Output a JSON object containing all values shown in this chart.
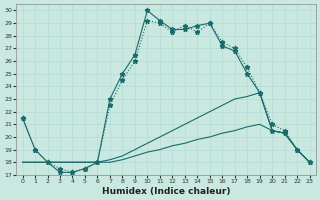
{
  "xlabel": "Humidex (Indice chaleur)",
  "xlim": [
    -0.5,
    23.5
  ],
  "ylim": [
    17,
    30.5
  ],
  "yticks": [
    17,
    18,
    19,
    20,
    21,
    22,
    23,
    24,
    25,
    26,
    27,
    28,
    29,
    30
  ],
  "xticks": [
    0,
    1,
    2,
    3,
    4,
    5,
    6,
    7,
    8,
    9,
    10,
    11,
    12,
    13,
    14,
    15,
    16,
    17,
    18,
    19,
    20,
    21,
    22,
    23
  ],
  "bg_color": "#c8e8e0",
  "line_color": "#1a6b6b",
  "grid_color": "#b8ddd8",
  "line1_solid_star": {
    "x": [
      0,
      1,
      2,
      3,
      4,
      5,
      6,
      7,
      8,
      9,
      10,
      11,
      12,
      13,
      14,
      15,
      16,
      17,
      18,
      19,
      20,
      21,
      22,
      23
    ],
    "y": [
      21.5,
      19.0,
      18.0,
      17.2,
      17.2,
      17.5,
      18.0,
      23.0,
      25.0,
      26.5,
      30.0,
      29.2,
      28.5,
      28.5,
      28.8,
      29.0,
      27.2,
      26.8,
      25.0,
      23.5,
      20.5,
      20.3,
      19.0,
      18.0
    ]
  },
  "line2_dotted_star": {
    "x": [
      0,
      1,
      2,
      3,
      4,
      5,
      6,
      7,
      8,
      9,
      10,
      11,
      12,
      13,
      14,
      15,
      16,
      17,
      18,
      19,
      20,
      21,
      22,
      23
    ],
    "y": [
      21.5,
      19.0,
      18.0,
      17.5,
      17.2,
      17.5,
      18.0,
      22.5,
      24.5,
      26.0,
      29.2,
      29.0,
      28.3,
      28.8,
      28.3,
      29.0,
      27.5,
      27.0,
      25.5,
      23.5,
      21.0,
      20.5,
      19.0,
      18.0
    ]
  },
  "line3_solid_nomarker": {
    "x": [
      0,
      1,
      2,
      3,
      4,
      5,
      6,
      7,
      8,
      9,
      10,
      11,
      12,
      13,
      14,
      15,
      16,
      17,
      18,
      19,
      20,
      21,
      22,
      23
    ],
    "y": [
      18.0,
      18.0,
      18.0,
      18.0,
      18.0,
      18.0,
      18.0,
      18.2,
      18.5,
      19.0,
      19.5,
      20.0,
      20.5,
      21.0,
      21.5,
      22.0,
      22.5,
      23.0,
      23.2,
      23.5,
      20.5,
      20.3,
      19.0,
      18.0
    ]
  },
  "line4_solid_nomarker": {
    "x": [
      0,
      1,
      2,
      3,
      4,
      5,
      6,
      7,
      8,
      9,
      10,
      11,
      12,
      13,
      14,
      15,
      16,
      17,
      18,
      19,
      20,
      21,
      22,
      23
    ],
    "y": [
      18.0,
      18.0,
      18.0,
      18.0,
      18.0,
      18.0,
      18.0,
      18.0,
      18.2,
      18.5,
      18.8,
      19.0,
      19.3,
      19.5,
      19.8,
      20.0,
      20.3,
      20.5,
      20.8,
      21.0,
      20.5,
      20.3,
      19.0,
      18.0
    ]
  }
}
